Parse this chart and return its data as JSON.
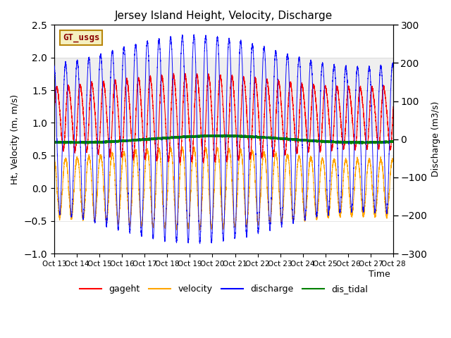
{
  "title": "Jersey Island Height, Velocity, Discharge",
  "xlabel": "Time",
  "ylabel_left": "Ht, Velocity (m, m/s)",
  "ylabel_right": "Discharge (m3/s)",
  "ylim_left": [
    -1.0,
    2.5
  ],
  "ylim_right": [
    -300,
    300
  ],
  "xlim": [
    0,
    360
  ],
  "xtick_positions": [
    0,
    24,
    48,
    72,
    96,
    120,
    144,
    168,
    192,
    216,
    240,
    264,
    288,
    312,
    336,
    360
  ],
  "xtick_labels": [
    "Oct 13",
    "Oct 14",
    "Oct 15",
    "Oct 16",
    "Oct 17",
    "Oct 18",
    "Oct 19",
    "Oct 20",
    "Oct 21",
    "Oct 22",
    "Oct 23",
    "Oct 24",
    "Oct 25",
    "Oct 26",
    "Oct 27",
    "Oct 28"
  ],
  "gt_usgs_label": "GT_usgs",
  "gt_usgs_facecolor": "#f5f0c0",
  "gt_usgs_edgecolor": "#b8860b",
  "bg_band_color": "#d3d3d3",
  "bg_band_alpha": 0.35,
  "bg_band_ymin": 0.8,
  "bg_band_ymax": 2.0,
  "gageht_color": "red",
  "velocity_color": "orange",
  "discharge_color": "blue",
  "dis_tidal_color": "green",
  "tidal_period_hours": 12.4,
  "total_hours": 360,
  "npoints": 8640,
  "legend_entries": [
    "gageht",
    "velocity",
    "discharge",
    "dis_tidal"
  ],
  "legend_colors": [
    "red",
    "orange",
    "blue",
    "green"
  ]
}
